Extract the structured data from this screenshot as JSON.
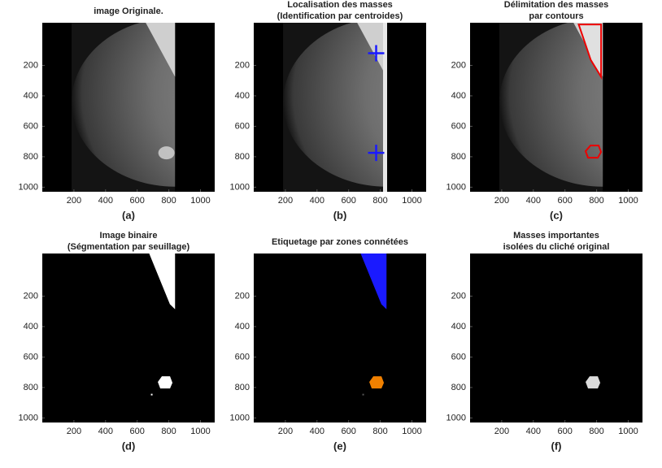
{
  "panels": [
    {
      "title": [
        "image Originale."
      ],
      "caption": "(a)",
      "xlim": [
        0,
        1090
      ],
      "ylim": [
        -80,
        1030
      ],
      "xticks": [
        200,
        400,
        600,
        800,
        1000
      ],
      "yticks": [
        200,
        400,
        600,
        800,
        1000
      ]
    },
    {
      "title": [
        "Localisation des masses",
        "(Identification par centroides)"
      ],
      "caption": "(b)",
      "xlim": [
        0,
        1090
      ],
      "ylim": [
        -80,
        1030
      ],
      "xticks": [
        200,
        400,
        600,
        800,
        1000
      ],
      "yticks": [
        200,
        400,
        600,
        800,
        1000
      ]
    },
    {
      "title": [
        "Délimitation des masses",
        "par contours"
      ],
      "caption": "(c)",
      "xlim": [
        0,
        1090
      ],
      "ylim": [
        -80,
        1030
      ],
      "xticks": [
        200,
        400,
        600,
        800,
        1000
      ],
      "yticks": [
        200,
        400,
        600,
        800,
        1000
      ]
    },
    {
      "title": [
        "Image binaire",
        "(Ségmentation par seuillage)"
      ],
      "caption": "(d)",
      "xlim": [
        0,
        1090
      ],
      "ylim": [
        -80,
        1030
      ],
      "xticks": [
        200,
        400,
        600,
        800,
        1000
      ],
      "yticks": [
        200,
        400,
        600,
        800,
        1000
      ]
    },
    {
      "title": [
        "Etiquetage par zones connétées"
      ],
      "caption": "(e)",
      "xlim": [
        0,
        1090
      ],
      "ylim": [
        -80,
        1030
      ],
      "xticks": [
        200,
        400,
        600,
        800,
        1000
      ],
      "yticks": [
        200,
        400,
        600,
        800,
        1000
      ]
    },
    {
      "title": [
        "Masses importantes",
        "isolées du cliché original"
      ],
      "caption": "(f)",
      "xlim": [
        0,
        1090
      ],
      "ylim": [
        -80,
        1030
      ],
      "xticks": [
        200,
        400,
        600,
        800,
        1000
      ],
      "yticks": [
        200,
        400,
        600,
        800,
        1000
      ]
    }
  ]
}
